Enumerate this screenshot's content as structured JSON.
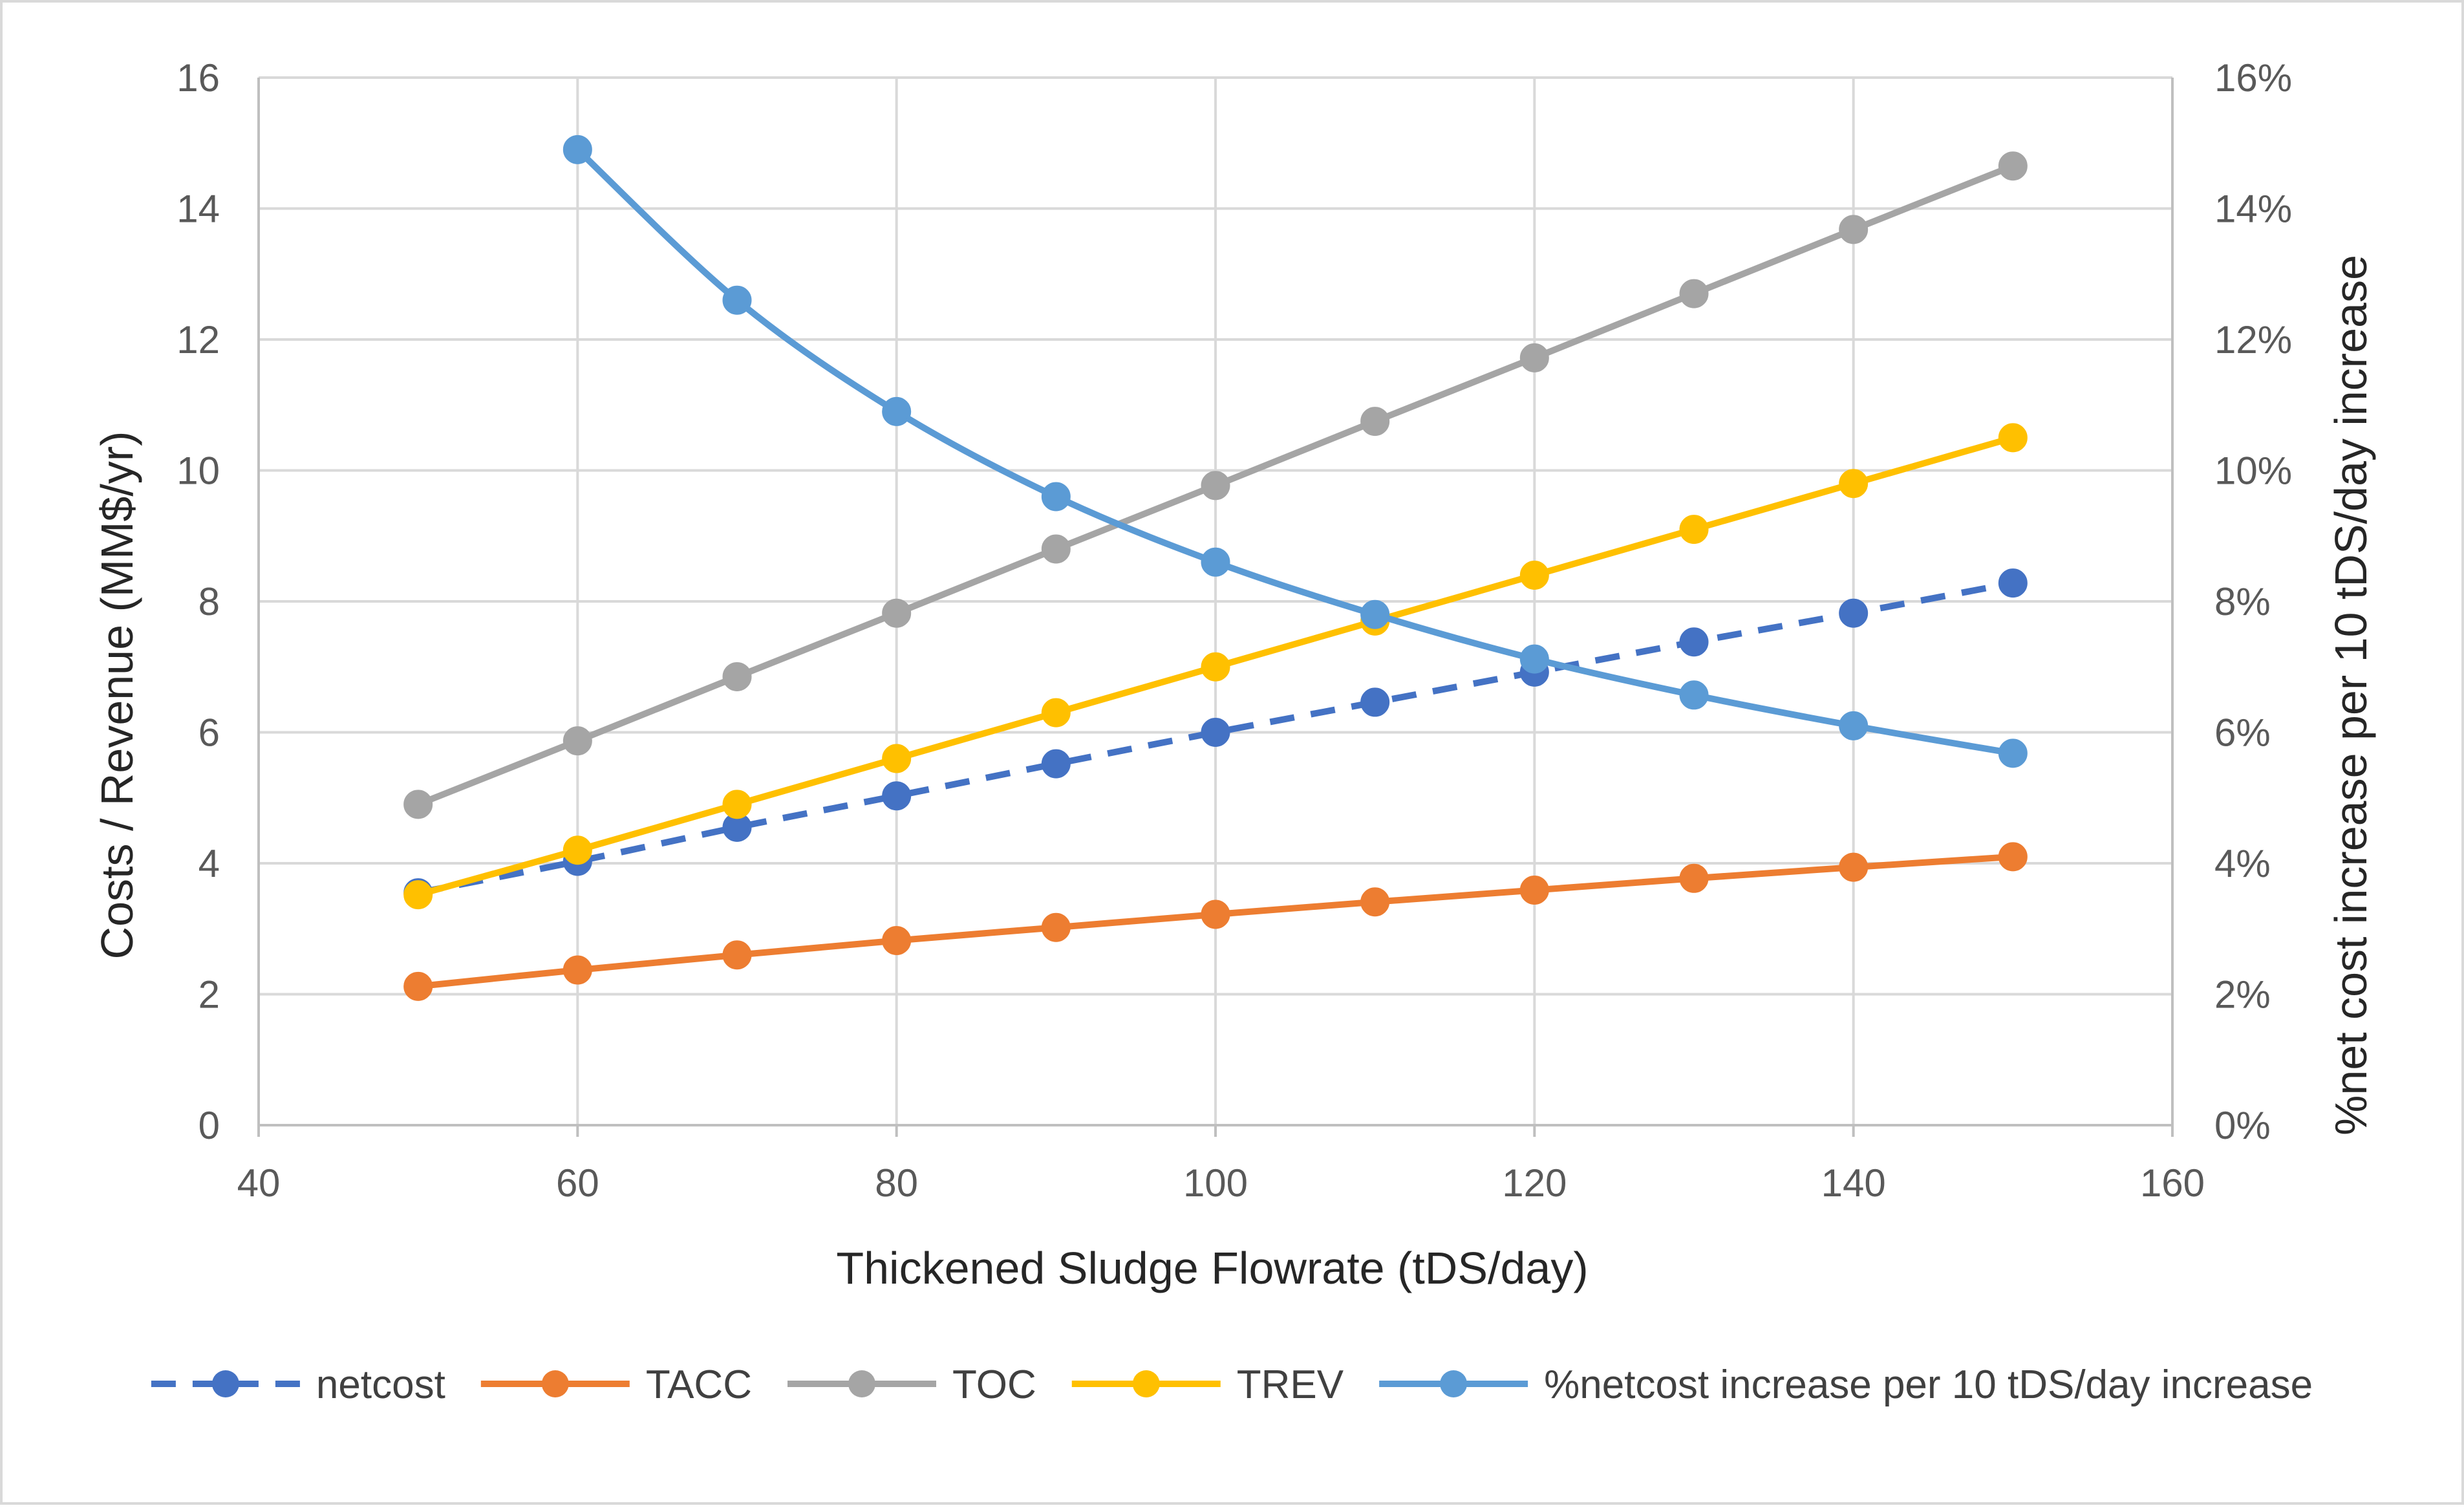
{
  "chart_data": {
    "type": "line",
    "title": "",
    "xlabel": "Thickened Sludge Flowrate (tDS/day)",
    "ylabel": "Costs / Revenue (MM$/yr)",
    "y2label": "%net cost increase per 10 tDS/day increase",
    "xlim": [
      40,
      160
    ],
    "ylim": [
      0,
      16
    ],
    "y2lim": [
      0,
      16
    ],
    "x_ticks": [
      "40",
      "60",
      "80",
      "100",
      "120",
      "140",
      "160"
    ],
    "y_ticks": [
      "0",
      "2",
      "4",
      "6",
      "8",
      "10",
      "12",
      "14",
      "16"
    ],
    "y2_ticks": [
      "0%",
      "2%",
      "4%",
      "6%",
      "8%",
      "10%",
      "12%",
      "14%",
      "16%"
    ],
    "grid": true,
    "legend_position": "bottom",
    "series": [
      {
        "name": "netcost",
        "color": "#4472C4",
        "dashed": true,
        "axis": "left",
        "x": [
          50,
          60,
          70,
          80,
          90,
          100,
          110,
          120,
          130,
          140,
          150
        ],
        "values": [
          3.55,
          4.03,
          4.55,
          5.03,
          5.52,
          6.0,
          6.46,
          6.92,
          7.38,
          7.82,
          8.28
        ]
      },
      {
        "name": "TACC",
        "color": "#ED7D31",
        "dashed": false,
        "axis": "left",
        "x": [
          50,
          60,
          70,
          80,
          90,
          100,
          110,
          120,
          130,
          140,
          150
        ],
        "values": [
          2.12,
          2.37,
          2.6,
          2.82,
          3.02,
          3.22,
          3.41,
          3.59,
          3.77,
          3.94,
          4.1
        ]
      },
      {
        "name": "TOC",
        "color": "#A5A5A5",
        "dashed": false,
        "axis": "left",
        "x": [
          50,
          60,
          70,
          80,
          90,
          100,
          110,
          120,
          130,
          140,
          150
        ],
        "values": [
          4.9,
          5.87,
          6.85,
          7.82,
          8.8,
          9.77,
          10.75,
          11.72,
          12.7,
          13.68,
          14.65
        ]
      },
      {
        "name": "TREV",
        "color": "#FFC000",
        "dashed": false,
        "axis": "left",
        "x": [
          50,
          60,
          70,
          80,
          90,
          100,
          110,
          120,
          130,
          140,
          150
        ],
        "values": [
          3.52,
          4.2,
          4.9,
          5.6,
          6.3,
          7.0,
          7.7,
          8.4,
          9.1,
          9.8,
          10.5
        ]
      },
      {
        "name": "%netcost increase per 10 tDS/day increase",
        "color": "#5B9BD5",
        "dashed": false,
        "axis": "right",
        "x": [
          60,
          70,
          80,
          90,
          100,
          110,
          120,
          130,
          140,
          150
        ],
        "values": [
          14.9,
          12.6,
          10.9,
          9.6,
          8.6,
          7.8,
          7.12,
          6.57,
          6.1,
          5.68
        ]
      }
    ]
  }
}
